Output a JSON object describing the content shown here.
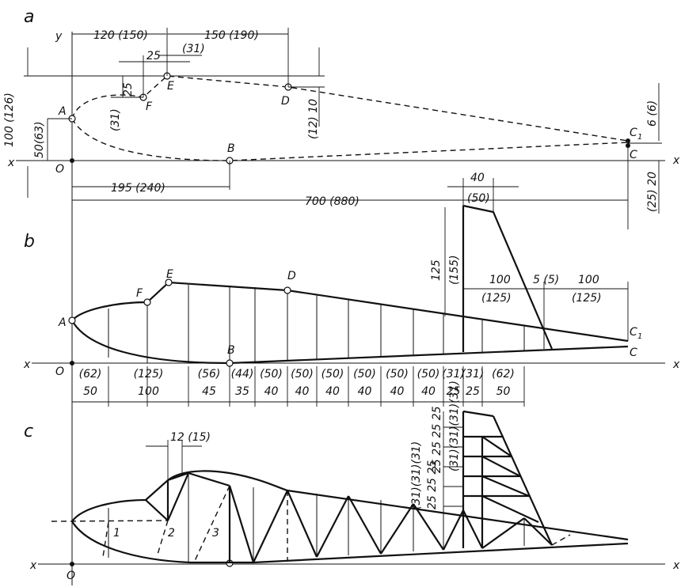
{
  "panels": {
    "a": "a",
    "b": "b",
    "c": "c"
  },
  "axes": {
    "x": "x",
    "y": "y",
    "origin": "O"
  },
  "points": {
    "A": "A",
    "B": "B",
    "C": "C",
    "C1": "C",
    "C1_sub": "1",
    "D": "D",
    "E": "E",
    "F": "F"
  },
  "panel_a": {
    "d_120": "120 (150)",
    "d_150": "150 (190)",
    "d_25": "25",
    "d_31": "(31)",
    "d_25v": "25",
    "d_31v": "(31)",
    "d_100": "100 (126)",
    "d_50": "50(63)",
    "d_12": "(12) 10",
    "d_195": "195 (240)",
    "d_700": "700 (880)",
    "d_6": "6 (6)",
    "d_20": "(25) 20"
  },
  "panel_b": {
    "d_40": "40",
    "d_50": "(50)",
    "d_125": "125",
    "d_155": "(155)",
    "d_100a": "100",
    "d_125a": "(125)",
    "d_5": "5 (5)",
    "d_100b": "100",
    "d_125b": "(125)",
    "stations_top": [
      "(62)",
      "(125)",
      "(56)",
      "(44)",
      "(50)",
      "(50)",
      "(50)",
      "(50)",
      "(50)",
      "(50)",
      "(31)",
      "(31)",
      "(62)"
    ],
    "stations_bot": [
      "50",
      "100",
      "45",
      "35",
      "40",
      "40",
      "40",
      "40",
      "40",
      "40",
      "25",
      "25",
      "50"
    ]
  },
  "panel_c": {
    "d_12": "12 (15)",
    "members": [
      "1",
      "2",
      "3"
    ],
    "fin_dims_top": "(31)(31)(31)(31)",
    "fin_dims_bot": "25 25 25 25",
    "fin_dims_left": "(31)(31)(31)",
    "fin_dims_left_bot": "25 25 25"
  }
}
